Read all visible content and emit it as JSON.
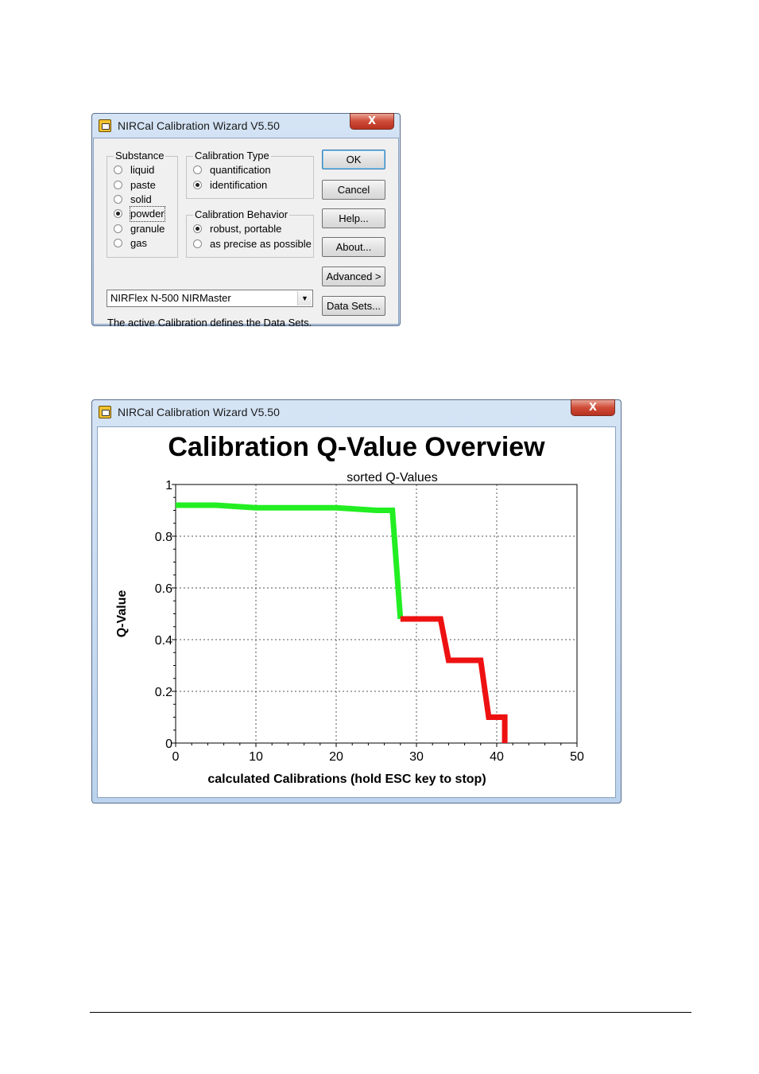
{
  "dialog": {
    "title": "NIRCal Calibration Wizard V5.50",
    "close_label": "X",
    "substance": {
      "label": "Substance",
      "options": [
        "liquid",
        "paste",
        "solid",
        "powder",
        "granule",
        "gas"
      ],
      "selected": "powder"
    },
    "calibration_type": {
      "label": "Calibration Type",
      "options": [
        "quantification",
        "identification"
      ],
      "selected": "identification"
    },
    "calibration_behavior": {
      "label": "Calibration Behavior",
      "options": [
        "robust, portable",
        "as precise as possible"
      ],
      "selected": "robust, portable"
    },
    "buttons": {
      "ok": "OK",
      "cancel": "Cancel",
      "help": "Help...",
      "about": "About...",
      "advanced": "Advanced >",
      "data_sets": "Data Sets..."
    },
    "instrument": {
      "selected": "NIRFlex N-500 NIRMaster"
    },
    "status_text": "The active Calibration defines the Data Sets."
  },
  "chart_window": {
    "title": "NIRCal Calibration Wizard V5.50",
    "close_label": "X"
  },
  "chart_data": {
    "type": "line",
    "title": "Calibration Q-Value Overview",
    "subtitle": "sorted Q-Values",
    "xlabel": "calculated Calibrations   (hold ESC key to stop)",
    "ylabel": "Q-Value",
    "xlim": [
      0,
      50
    ],
    "ylim": [
      0,
      1
    ],
    "xticks": [
      0,
      10,
      20,
      30,
      40,
      50
    ],
    "yticks": [
      0,
      0.2,
      0.4,
      0.6,
      0.8,
      1
    ],
    "ytick_labels": [
      "0",
      "0.2",
      "0.4",
      "0.6",
      "0.8",
      "1"
    ],
    "grid": true,
    "series": [
      {
        "color": "#22ee22",
        "x": [
          0,
          5,
          10,
          15,
          20,
          25,
          27,
          28
        ],
        "y": [
          0.92,
          0.92,
          0.91,
          0.91,
          0.91,
          0.9,
          0.9,
          0.48
        ]
      },
      {
        "color": "#ee1111",
        "x": [
          28,
          33,
          34,
          38,
          39,
          41,
          41
        ],
        "y": [
          0.48,
          0.48,
          0.32,
          0.32,
          0.1,
          0.1,
          0
        ]
      }
    ]
  }
}
